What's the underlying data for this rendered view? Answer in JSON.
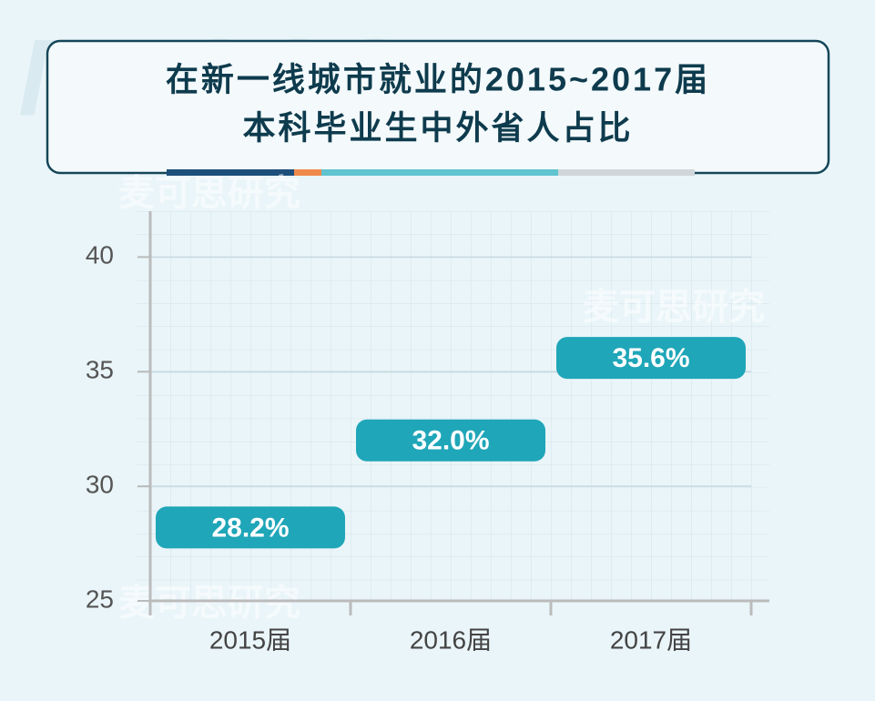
{
  "chart_data": {
    "type": "bar",
    "title": [
      "在新一线城市就业的2015~2017届",
      "本科毕业生中外省人占比"
    ],
    "categories": [
      "2015届",
      "2016届",
      "2017届"
    ],
    "values": [
      28.2,
      32.0,
      35.6
    ],
    "value_labels": [
      "28.2%",
      "32.0%",
      "35.6%"
    ],
    "color": "#1fa6b8",
    "ylim": [
      25,
      42
    ],
    "yticks": [
      25,
      30,
      35,
      40
    ],
    "grid": true,
    "watermark": "麦可思研究",
    "watermark_logo": "MyCOS"
  }
}
